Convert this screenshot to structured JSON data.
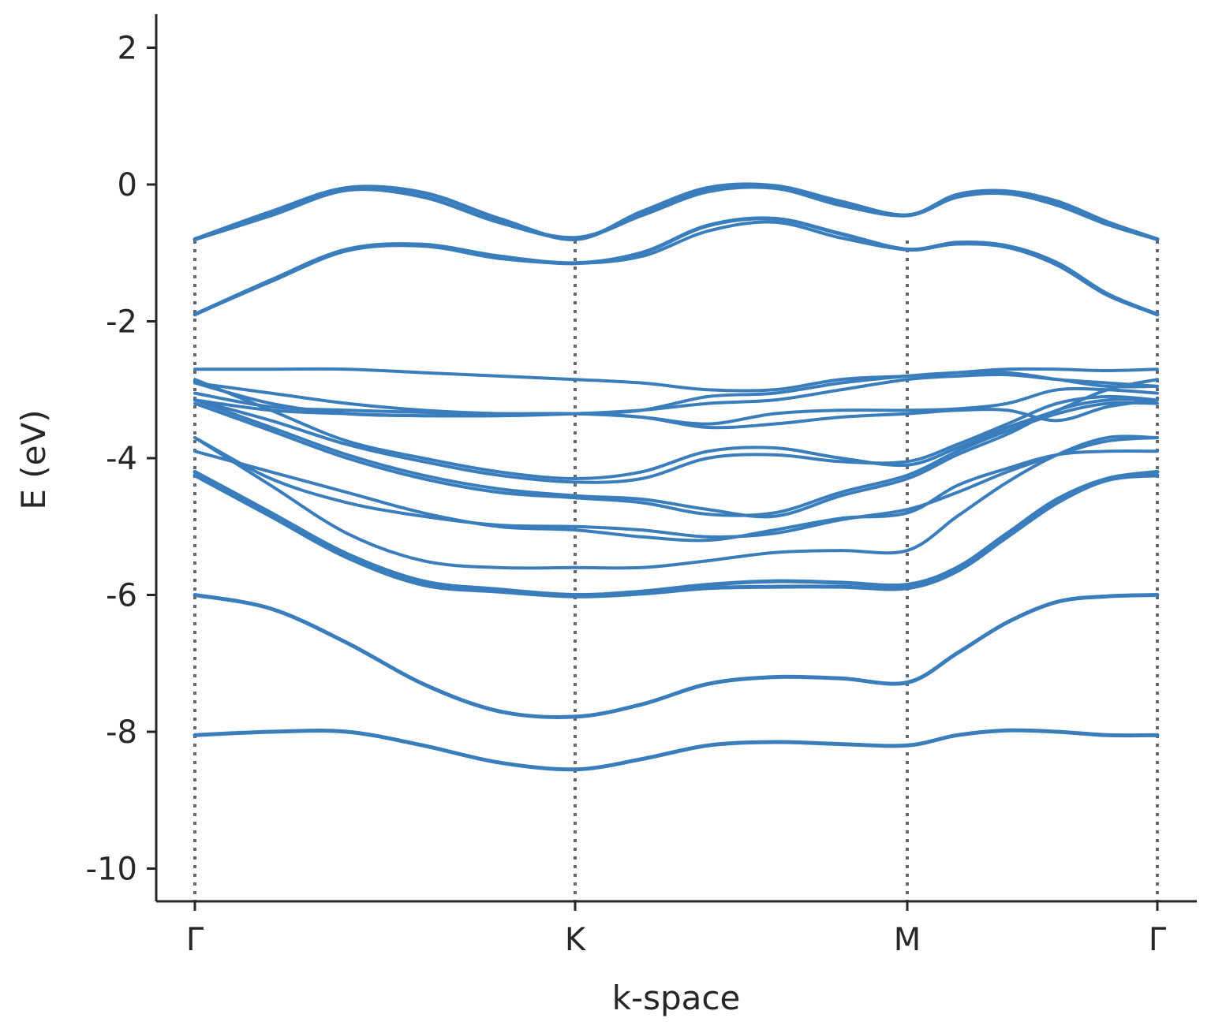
{
  "chart_data": {
    "type": "line",
    "title": "",
    "xlabel": "k-space",
    "ylabel": "E (eV)",
    "ylim": [
      -10.5,
      2.5
    ],
    "x_ticks": [
      {
        "pos": 0,
        "label": "Γ"
      },
      {
        "pos": 1,
        "label": "K"
      },
      {
        "pos": 2,
        "label": "M"
      },
      {
        "pos": 3,
        "label": "Γ"
      }
    ],
    "y_ticks": [
      {
        "value": 2,
        "label": "2"
      },
      {
        "value": 0,
        "label": "0"
      },
      {
        "value": -2,
        "label": "-2"
      },
      {
        "value": -4,
        "label": "-4"
      },
      {
        "value": -6,
        "label": "-6"
      },
      {
        "value": -8,
        "label": "-8"
      },
      {
        "value": -10,
        "label": "-10"
      }
    ],
    "high_symmetry_lines": [
      0,
      1,
      2,
      3
    ],
    "line_color": "#3a7dbd",
    "vline_color": "#666666",
    "axis_color": "#262626",
    "x_positions": [
      0,
      0.2,
      0.4,
      0.6,
      0.8,
      1,
      1.2,
      1.4,
      1.6,
      1.8,
      2,
      2.2,
      2.4,
      2.6,
      2.8,
      3
    ],
    "series": [
      {
        "width": 5,
        "values": [
          -0.8,
          -0.4,
          -0.05,
          -0.12,
          -0.5,
          -0.8,
          -0.4,
          -0.05,
          -0.02,
          -0.25,
          -0.45,
          -0.15,
          -0.1,
          -0.25,
          -0.55,
          -0.8
        ]
      },
      {
        "width": 5,
        "values": [
          -0.8,
          -0.45,
          -0.08,
          -0.18,
          -0.55,
          -0.78,
          -0.45,
          -0.1,
          -0.05,
          -0.3,
          -0.45,
          -0.18,
          -0.13,
          -0.3,
          -0.58,
          -0.8
        ]
      },
      {
        "width": 5,
        "values": [
          -1.9,
          -1.4,
          -0.95,
          -0.88,
          -1.05,
          -1.15,
          -1.0,
          -0.6,
          -0.5,
          -0.72,
          -0.95,
          -0.85,
          -0.9,
          -1.15,
          -1.6,
          -1.9
        ]
      },
      {
        "width": 4,
        "values": [
          -1.9,
          -1.42,
          -0.97,
          -0.9,
          -1.08,
          -1.15,
          -1.05,
          -0.68,
          -0.55,
          -0.78,
          -0.95,
          -0.87,
          -0.92,
          -1.18,
          -1.62,
          -1.9
        ]
      },
      {
        "width": 4,
        "values": [
          -2.7,
          -2.7,
          -2.7,
          -2.75,
          -2.8,
          -2.85,
          -2.9,
          -3.0,
          -3.0,
          -2.85,
          -2.8,
          -2.75,
          -2.7,
          -2.7,
          -2.72,
          -2.7
        ]
      },
      {
        "width": 4,
        "values": [
          -2.9,
          -3.05,
          -3.2,
          -3.3,
          -3.35,
          -3.35,
          -3.3,
          -3.1,
          -3.05,
          -2.9,
          -2.8,
          -2.75,
          -2.75,
          -2.85,
          -2.95,
          -2.95
        ]
      },
      {
        "width": 4,
        "values": [
          -2.9,
          -3.2,
          -3.35,
          -3.38,
          -3.38,
          -3.35,
          -3.3,
          -3.2,
          -3.15,
          -3.0,
          -2.85,
          -2.8,
          -2.78,
          -2.85,
          -2.9,
          -2.95
        ]
      },
      {
        "width": 4,
        "values": [
          -2.85,
          -3.3,
          -3.75,
          -4.0,
          -4.2,
          -4.3,
          -4.2,
          -3.9,
          -3.85,
          -4.0,
          -4.1,
          -3.85,
          -3.55,
          -3.3,
          -3.0,
          -2.85
        ]
      },
      {
        "width": 4,
        "values": [
          -3.15,
          -3.45,
          -3.8,
          -4.05,
          -4.25,
          -4.35,
          -4.3,
          -4.0,
          -3.95,
          -4.05,
          -4.05,
          -3.8,
          -3.5,
          -3.2,
          -3.1,
          -3.15
        ]
      },
      {
        "width": 4,
        "values": [
          -3.15,
          -3.55,
          -3.95,
          -4.25,
          -4.45,
          -4.55,
          -4.6,
          -4.75,
          -4.85,
          -4.55,
          -4.3,
          -3.95,
          -3.65,
          -3.3,
          -3.15,
          -3.15
        ]
      },
      {
        "width": 4,
        "values": [
          -3.2,
          -3.6,
          -4.0,
          -4.3,
          -4.5,
          -4.58,
          -4.65,
          -4.82,
          -4.8,
          -4.5,
          -4.25,
          -3.9,
          -3.6,
          -3.35,
          -3.2,
          -3.2
        ]
      },
      {
        "width": 4,
        "values": [
          -3.15,
          -3.3,
          -3.35,
          -3.38,
          -3.36,
          -3.35,
          -3.4,
          -3.55,
          -3.5,
          -3.4,
          -3.35,
          -3.3,
          -3.3,
          -3.45,
          -3.25,
          -3.15
        ]
      },
      {
        "width": 4,
        "values": [
          -3.05,
          -3.25,
          -3.3,
          -3.33,
          -3.35,
          -3.35,
          -3.4,
          -3.5,
          -3.35,
          -3.3,
          -3.3,
          -3.28,
          -3.2,
          -3.0,
          -3.0,
          -3.05
        ]
      },
      {
        "width": 4,
        "values": [
          -3.7,
          -4.3,
          -4.65,
          -4.85,
          -4.98,
          -5.0,
          -5.05,
          -5.15,
          -5.1,
          -4.9,
          -4.75,
          -4.5,
          -4.2,
          -3.95,
          -3.75,
          -3.7
        ]
      },
      {
        "width": 4,
        "values": [
          -3.9,
          -4.2,
          -4.5,
          -4.8,
          -5.0,
          -5.05,
          -5.15,
          -5.2,
          -5.05,
          -4.88,
          -4.8,
          -4.4,
          -4.15,
          -3.95,
          -3.9,
          -3.9
        ]
      },
      {
        "width": 4,
        "values": [
          -3.7,
          -4.4,
          -5.1,
          -5.5,
          -5.6,
          -5.6,
          -5.6,
          -5.5,
          -5.38,
          -5.35,
          -5.35,
          -4.85,
          -4.35,
          -3.95,
          -3.7,
          -3.7
        ]
      },
      {
        "width": 5,
        "values": [
          -4.2,
          -4.8,
          -5.4,
          -5.8,
          -5.92,
          -6.0,
          -5.95,
          -5.85,
          -5.8,
          -5.82,
          -5.85,
          -5.6,
          -5.1,
          -4.6,
          -4.3,
          -4.2
        ]
      },
      {
        "width": 5,
        "values": [
          -4.25,
          -4.85,
          -5.45,
          -5.85,
          -5.95,
          -6.02,
          -5.98,
          -5.9,
          -5.88,
          -5.88,
          -5.9,
          -5.65,
          -5.15,
          -4.65,
          -4.32,
          -4.25
        ]
      },
      {
        "width": 5,
        "values": [
          -6.0,
          -6.2,
          -6.7,
          -7.3,
          -7.7,
          -7.78,
          -7.6,
          -7.3,
          -7.2,
          -7.22,
          -7.28,
          -6.85,
          -6.4,
          -6.1,
          -6.02,
          -6.0
        ]
      },
      {
        "width": 5,
        "values": [
          -8.05,
          -8.0,
          -8.0,
          -8.2,
          -8.45,
          -8.55,
          -8.4,
          -8.2,
          -8.15,
          -8.18,
          -8.2,
          -8.05,
          -7.98,
          -8.0,
          -8.05,
          -8.05
        ]
      }
    ]
  }
}
